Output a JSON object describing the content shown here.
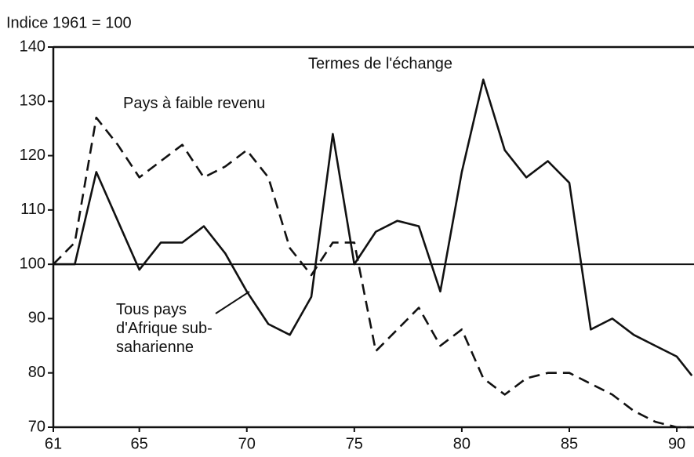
{
  "chart_data": {
    "type": "line",
    "title": "Termes de l'échange",
    "y_label": "Indice 1961 = 100",
    "x": [
      61,
      62,
      63,
      64,
      65,
      66,
      67,
      68,
      69,
      70,
      71,
      72,
      73,
      74,
      75,
      76,
      77,
      78,
      79,
      80,
      81,
      82,
      83,
      84,
      85,
      86,
      87,
      88,
      89,
      90,
      90.7
    ],
    "series": [
      {
        "name": "Tous pays d'Afrique sub-saharienne",
        "color": "#111111",
        "dash": "solid",
        "values": [
          100,
          100,
          117,
          108,
          99,
          104,
          104,
          107,
          102,
          95,
          89,
          87,
          94,
          124,
          100,
          106,
          108,
          107,
          95,
          117,
          134,
          121,
          116,
          119,
          115,
          88,
          90,
          87,
          85,
          83,
          79.5
        ]
      },
      {
        "name": "Pays à faible revenu",
        "color": "#111111",
        "dash": "dashed",
        "values": [
          100,
          104,
          127,
          122,
          116,
          119,
          122,
          116,
          118,
          121,
          116,
          103,
          98,
          104,
          104,
          84,
          88,
          92,
          85,
          88,
          79,
          76,
          79,
          80,
          80,
          78,
          76,
          73,
          71,
          70,
          70
        ]
      }
    ],
    "xlim": [
      61,
      90.8
    ],
    "ylim": [
      70,
      140
    ],
    "xticks": [
      61,
      65,
      70,
      75,
      80,
      85,
      90
    ],
    "yticks": [
      70,
      80,
      90,
      100,
      110,
      120,
      130,
      140
    ],
    "reference_line": 100
  }
}
